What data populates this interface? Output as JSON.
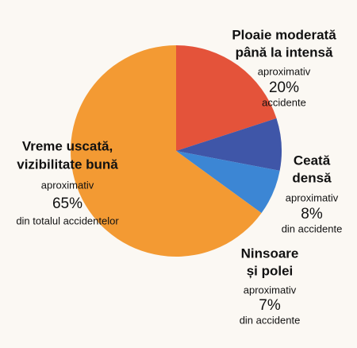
{
  "chart_data": {
    "type": "pie",
    "categories": [
      [
        "Ploaie moderată",
        "până la intensă"
      ],
      [
        "Ceată",
        "densă"
      ],
      [
        "Ninsoare",
        "și polei"
      ],
      [
        "Vreme uscată,",
        "vizibilitate bună"
      ]
    ],
    "values": [
      20,
      8,
      7,
      65
    ],
    "value_labels": [
      "20%",
      "8%",
      "7%",
      "65%"
    ],
    "prefixes": [
      "aproximativ",
      "aproximativ",
      "aproximativ",
      "aproximativ"
    ],
    "suffixes": [
      "accidente",
      "din accidente",
      "din accidente",
      "din totalul accidentelor"
    ],
    "colors": [
      "#e4533a",
      "#3f56a8",
      "#3c86d4",
      "#f39a33"
    ]
  }
}
